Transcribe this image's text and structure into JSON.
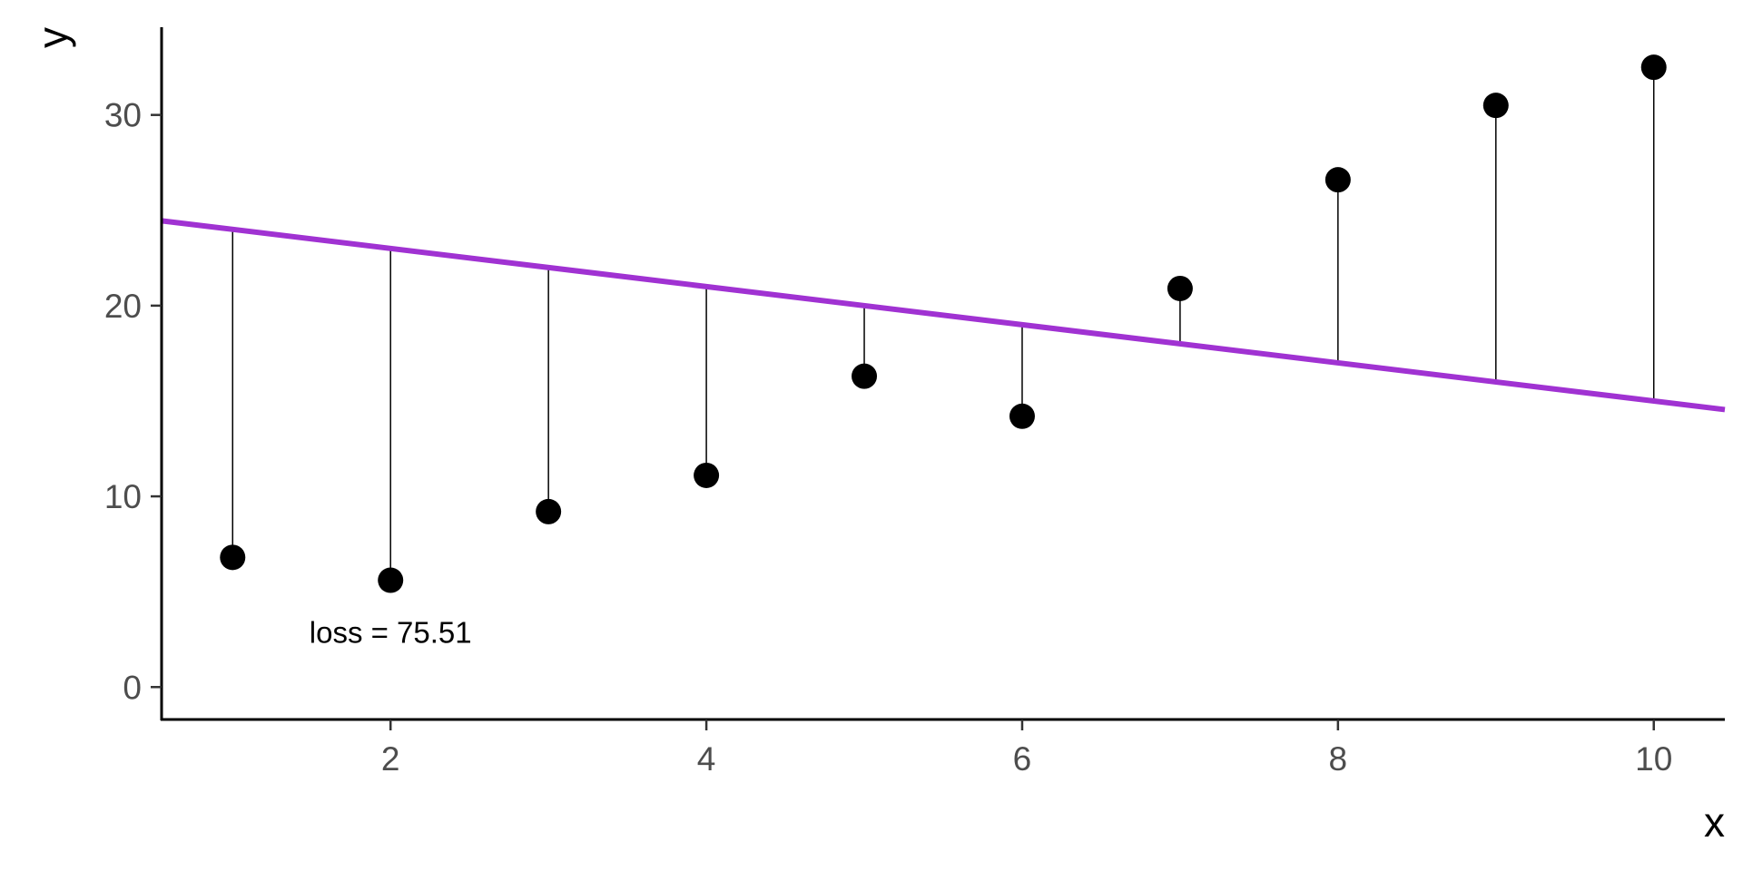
{
  "chart_data": {
    "type": "scatter",
    "title": "",
    "xlabel": "x",
    "ylabel": "y",
    "xlim": [
      0.55,
      10.45
    ],
    "ylim": [
      -1.7,
      34.6
    ],
    "x_ticks": [
      2,
      4,
      6,
      8,
      10
    ],
    "y_ticks": [
      0,
      10,
      20,
      30
    ],
    "grid": false,
    "legend": "none",
    "points": {
      "x": [
        1,
        2,
        3,
        4,
        5,
        6,
        7,
        8,
        9,
        10
      ],
      "y": [
        6.8,
        5.6,
        9.2,
        11.1,
        16.3,
        14.2,
        20.9,
        26.6,
        30.5,
        32.5
      ],
      "color": "#000000"
    },
    "fit_line": {
      "intercept": 25,
      "slope": -1,
      "color": "#a032d2"
    },
    "residual_segments": true,
    "annotation": {
      "text": "loss = 75.51",
      "x": 2,
      "y": 2.9
    }
  }
}
